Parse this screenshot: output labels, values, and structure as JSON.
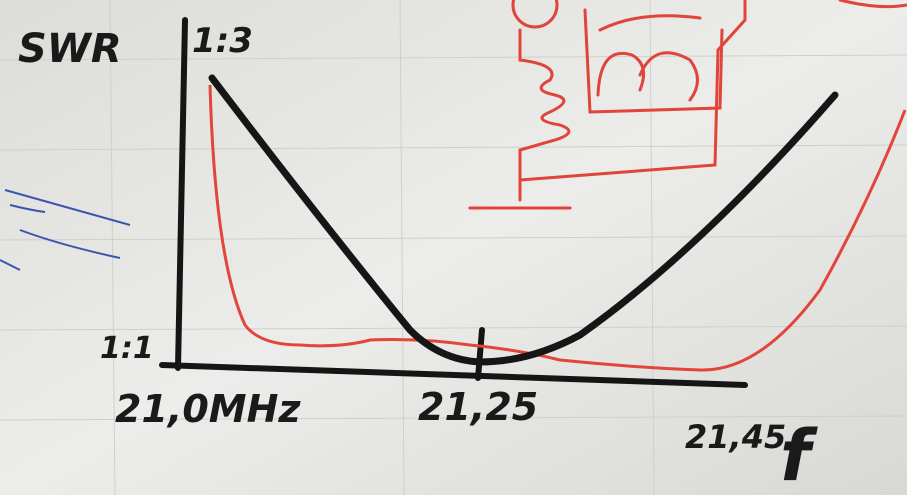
{
  "labels": {
    "y_axis": "SWR",
    "y_top": "1:3",
    "y_bottom": "1:1",
    "x_start": "21,0MHz",
    "x_mid": "21,25",
    "x_end": "21,45",
    "x_axis": "f"
  }
}
